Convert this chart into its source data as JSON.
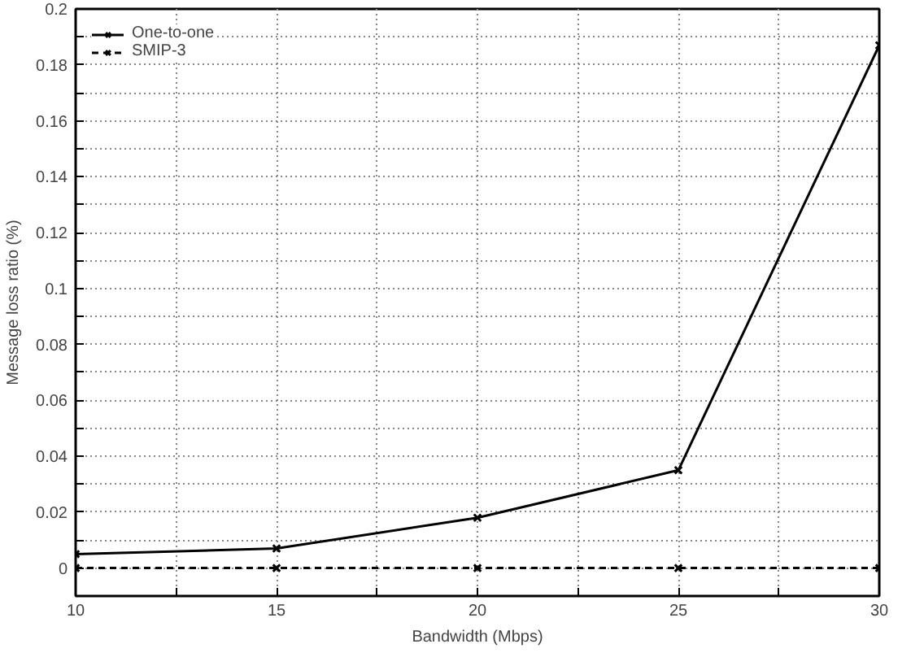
{
  "chart_data": {
    "type": "line",
    "xlabel": "Bandwidth (Mbps)",
    "ylabel": "Message loss ratio (%)",
    "x": [
      10,
      15,
      20,
      25,
      30
    ],
    "series": [
      {
        "name": "One-to-one",
        "color": "#000000",
        "values": [
          0.005,
          0.007,
          0.018,
          0.035,
          0.187
        ],
        "line_style": "solid",
        "marker": "cross"
      },
      {
        "name": "SMIP-3",
        "color": "#000000",
        "values": [
          0,
          0,
          0,
          0,
          0
        ],
        "line_style": "dashed",
        "marker": "cross"
      }
    ],
    "xlim": [
      10,
      30
    ],
    "xticks": [
      10,
      {
        "value": 12.5,
        "label": null
      },
      15,
      {
        "value": 17.5,
        "label": null
      },
      20,
      {
        "value": 22.5,
        "label": null
      },
      25,
      {
        "value": 27.5,
        "label": null
      },
      30
    ],
    "ylim": [
      -0.01,
      0.2
    ],
    "yticks": [
      {
        "value": -0.01,
        "label": null
      },
      0,
      {
        "value": 0.01,
        "label": null
      },
      0.02,
      {
        "value": 0.03,
        "label": null
      },
      0.04,
      {
        "value": 0.05,
        "label": null
      },
      0.06,
      {
        "value": 0.07,
        "label": null
      },
      0.08,
      {
        "value": 0.09,
        "label": null
      },
      0.1,
      {
        "value": 0.11,
        "label": null
      },
      0.12,
      {
        "value": 0.13,
        "label": null
      },
      0.14,
      {
        "value": 0.15,
        "label": null
      },
      0.16,
      {
        "value": 0.17,
        "label": null
      },
      0.18,
      {
        "value": 0.19,
        "label": null
      },
      0.2
    ],
    "grid": true,
    "legend": "top left"
  }
}
